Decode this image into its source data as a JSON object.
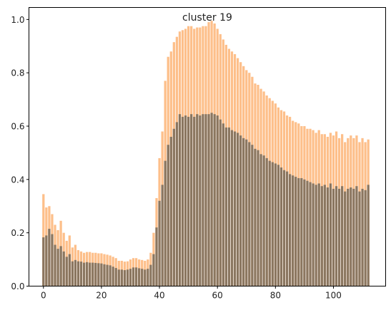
{
  "chart_data": {
    "type": "bar",
    "title": "cluster 19",
    "xlabel": "",
    "ylabel": "",
    "xlim": [
      -5,
      118
    ],
    "ylim": [
      0,
      1.045
    ],
    "xticks": [
      0,
      20,
      40,
      60,
      80,
      100
    ],
    "yticks": [
      0.0,
      0.2,
      0.4,
      0.6,
      0.8,
      1.0
    ],
    "xtick_labels": [
      "0",
      "20",
      "40",
      "60",
      "80",
      "100"
    ],
    "ytick_labels": [
      "0.0",
      "0.2",
      "0.4",
      "0.6",
      "0.8",
      "1.0"
    ],
    "grid": false,
    "legend": "none",
    "x": [
      0,
      1,
      2,
      3,
      4,
      5,
      6,
      7,
      8,
      9,
      10,
      11,
      12,
      13,
      14,
      15,
      16,
      17,
      18,
      19,
      20,
      21,
      22,
      23,
      24,
      25,
      26,
      27,
      28,
      29,
      30,
      31,
      32,
      33,
      34,
      35,
      36,
      37,
      38,
      39,
      40,
      41,
      42,
      43,
      44,
      45,
      46,
      47,
      48,
      49,
      50,
      51,
      52,
      53,
      54,
      55,
      56,
      57,
      58,
      59,
      60,
      61,
      62,
      63,
      64,
      65,
      66,
      67,
      68,
      69,
      70,
      71,
      72,
      73,
      74,
      75,
      76,
      77,
      78,
      79,
      80,
      81,
      82,
      83,
      84,
      85,
      86,
      87,
      88,
      89,
      90,
      91,
      92,
      93,
      94,
      95,
      96,
      97,
      98,
      99,
      100,
      101,
      102,
      103,
      104,
      105,
      106,
      107,
      108,
      109,
      110,
      111,
      112
    ],
    "series": [
      {
        "color": "#fdbf8a",
        "values": [
          0.345,
          0.295,
          0.3,
          0.27,
          0.23,
          0.21,
          0.245,
          0.2,
          0.17,
          0.19,
          0.145,
          0.155,
          0.135,
          0.13,
          0.125,
          0.128,
          0.128,
          0.125,
          0.125,
          0.123,
          0.123,
          0.12,
          0.118,
          0.115,
          0.11,
          0.105,
          0.095,
          0.095,
          0.092,
          0.093,
          0.1,
          0.105,
          0.105,
          0.1,
          0.098,
          0.095,
          0.1,
          0.125,
          0.2,
          0.33,
          0.48,
          0.58,
          0.77,
          0.86,
          0.88,
          0.915,
          0.935,
          0.955,
          0.96,
          0.965,
          0.975,
          0.975,
          0.965,
          0.97,
          0.97,
          0.975,
          0.975,
          0.99,
          0.995,
          0.985,
          0.965,
          0.945,
          0.925,
          0.905,
          0.89,
          0.88,
          0.87,
          0.855,
          0.84,
          0.825,
          0.81,
          0.8,
          0.785,
          0.76,
          0.755,
          0.74,
          0.73,
          0.715,
          0.705,
          0.695,
          0.685,
          0.67,
          0.66,
          0.655,
          0.64,
          0.635,
          0.62,
          0.615,
          0.61,
          0.6,
          0.6,
          0.59,
          0.59,
          0.585,
          0.575,
          0.585,
          0.57,
          0.57,
          0.56,
          0.575,
          0.565,
          0.58,
          0.555,
          0.57,
          0.54,
          0.555,
          0.565,
          0.555,
          0.565,
          0.54,
          0.555,
          0.54,
          0.55
        ]
      },
      {
        "color": "#8a7660",
        "values": [
          0.183,
          0.19,
          0.215,
          0.195,
          0.155,
          0.14,
          0.15,
          0.13,
          0.11,
          0.12,
          0.093,
          0.098,
          0.093,
          0.092,
          0.088,
          0.09,
          0.088,
          0.088,
          0.087,
          0.086,
          0.085,
          0.082,
          0.08,
          0.078,
          0.073,
          0.068,
          0.062,
          0.062,
          0.06,
          0.062,
          0.065,
          0.07,
          0.07,
          0.067,
          0.065,
          0.062,
          0.065,
          0.08,
          0.12,
          0.22,
          0.32,
          0.38,
          0.47,
          0.53,
          0.56,
          0.59,
          0.615,
          0.645,
          0.635,
          0.64,
          0.635,
          0.645,
          0.635,
          0.645,
          0.64,
          0.645,
          0.645,
          0.645,
          0.65,
          0.645,
          0.64,
          0.625,
          0.61,
          0.595,
          0.595,
          0.585,
          0.58,
          0.575,
          0.565,
          0.555,
          0.55,
          0.54,
          0.53,
          0.515,
          0.51,
          0.495,
          0.49,
          0.48,
          0.47,
          0.465,
          0.46,
          0.455,
          0.445,
          0.435,
          0.43,
          0.42,
          0.415,
          0.41,
          0.405,
          0.405,
          0.4,
          0.395,
          0.39,
          0.385,
          0.38,
          0.385,
          0.375,
          0.38,
          0.37,
          0.385,
          0.365,
          0.375,
          0.365,
          0.375,
          0.355,
          0.365,
          0.37,
          0.365,
          0.375,
          0.355,
          0.365,
          0.36,
          0.38
        ]
      }
    ]
  }
}
